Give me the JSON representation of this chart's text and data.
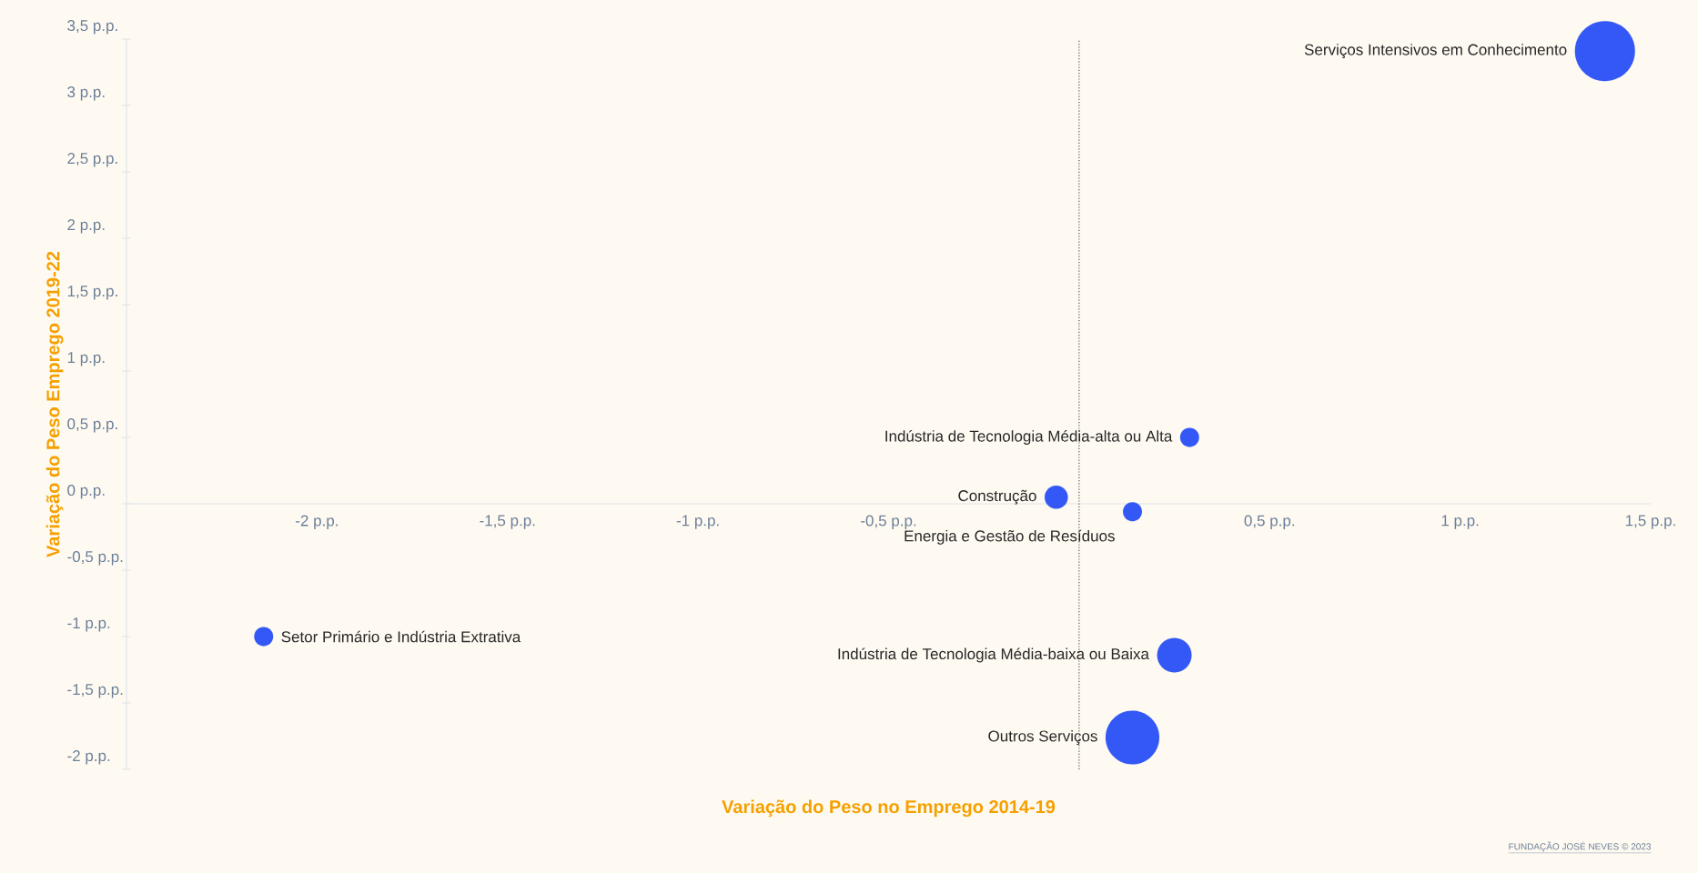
{
  "chart_data": {
    "type": "bubble",
    "xlabel": "Variação do Peso no Emprego 2014-19",
    "ylabel": "Variação do Peso Emprego 2019-22",
    "x": [
      1.38,
      0.29,
      -0.06,
      0.14,
      -2.14,
      0.25,
      0.14
    ],
    "values": [
      3.41,
      0.5,
      0.05,
      -0.06,
      -1.0,
      -1.14,
      -1.76
    ],
    "sizes": [
      1,
      0.1,
      0.15,
      0.1,
      0.1,
      0.33,
      0.8
    ],
    "color": "#3358f5",
    "xlim": [
      -2.5,
      1.5
    ],
    "ylim": [
      -2,
      3.5
    ],
    "xticks": [
      {
        "value": -2,
        "label": "-2 p.p."
      },
      {
        "value": -1.5,
        "label": "-1,5 p.p."
      },
      {
        "value": -1,
        "label": "-1 p.p."
      },
      {
        "value": -0.5,
        "label": "-0,5 p.p."
      },
      {
        "value": 0.5,
        "label": "0,5 p.p."
      },
      {
        "value": 1,
        "label": "1 p.p."
      },
      {
        "value": 1.5,
        "label": "1,5 p.p."
      }
    ],
    "yticks": [
      {
        "value": -2,
        "label": "-2 p.p."
      },
      {
        "value": -1.5,
        "label": "-1,5 p.p."
      },
      {
        "value": -1,
        "label": "-1 p.p."
      },
      {
        "value": -0.5,
        "label": "-0,5 p.p."
      },
      {
        "value": 0,
        "label": "0 p.p."
      },
      {
        "value": 0.5,
        "label": "0,5 p.p."
      },
      {
        "value": 1,
        "label": "1 p.p."
      },
      {
        "value": 1.5,
        "label": "1,5 p.p."
      },
      {
        "value": 2,
        "label": "2 p.p."
      },
      {
        "value": 2.5,
        "label": "2,5 p.p."
      },
      {
        "value": 3,
        "label": "3 p.p."
      },
      {
        "value": 3.5,
        "label": "3,5 p.p."
      }
    ],
    "ref_lines": [
      {
        "axis": "x",
        "value": 0,
        "color": "#555555",
        "line_style": "dotted"
      }
    ],
    "annotations": [
      {
        "text": "Serviços Intensivos em Conhecimento",
        "x": 1.38,
        "y": 3.41
      },
      {
        "text": "Indústria de Tecnologia Média-alta ou Alta",
        "x": 0.29,
        "y": 0.5
      },
      {
        "text": "Construção",
        "x": -0.06,
        "y": 0.05
      },
      {
        "text": "Energia e Gestão de Resíduos",
        "x": 0.14,
        "y": -0.06
      },
      {
        "text": "Setor Primário e Indústria Extrativa",
        "x": -2.14,
        "y": -1.0
      },
      {
        "text": "Indústria de Tecnologia Média-baixa ou Baixa",
        "x": 0.25,
        "y": -1.14
      },
      {
        "text": "Outros Serviços",
        "x": 0.14,
        "y": -1.76
      },
      "FUNDAÇÃO JOSÉ NEVES © 2023"
    ]
  }
}
